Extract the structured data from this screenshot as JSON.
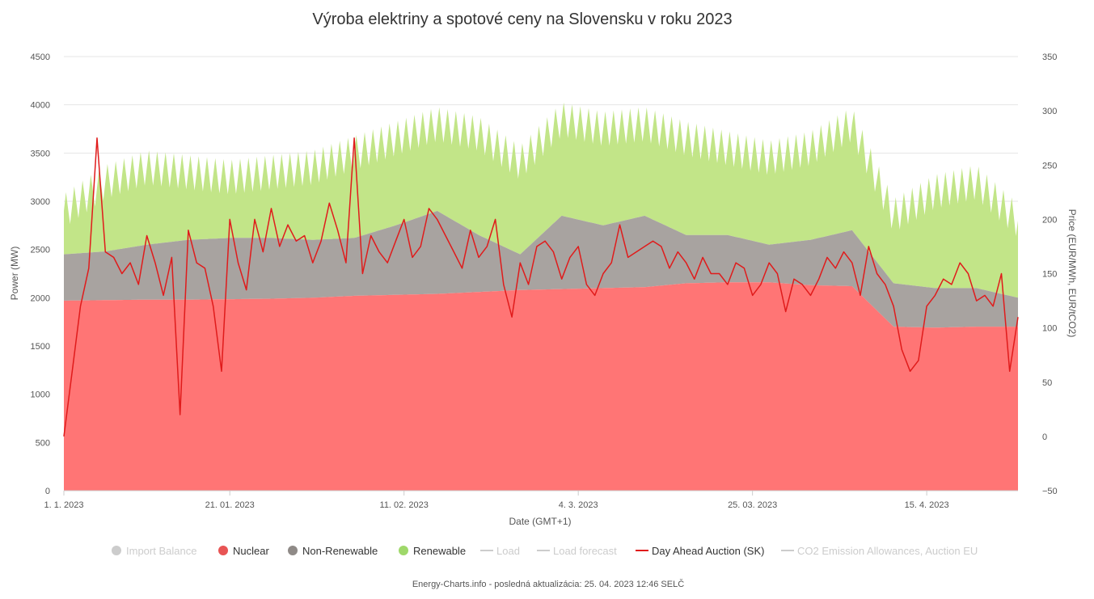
{
  "chart_data": {
    "type": "area",
    "title": "Výroba elektriny a spotové ceny na Slovensku v roku 2023",
    "xlabel": "Date (GMT+1)",
    "ylabel_left": "Power (MW)",
    "ylabel_right": "Price (EUR/MWh, EUR/tCO2)",
    "x_tick_labels": [
      "1. 1. 2023",
      "21. 01. 2023",
      "11. 02. 2023",
      "4. 3. 2023",
      "25. 03. 2023",
      "15. 4. 2023"
    ],
    "x_tick_days": [
      0,
      20,
      41,
      62,
      83,
      104
    ],
    "x_range_days": [
      0,
      115
    ],
    "y_left_ticks": [
      "0",
      "500",
      "1000",
      "1500",
      "2000",
      "2500",
      "3000",
      "3500",
      "4000",
      "4500"
    ],
    "y_left_range": [
      0,
      4500
    ],
    "y_right_ticks": [
      "−50",
      "0",
      "50",
      "100",
      "150",
      "200",
      "250",
      "300",
      "350"
    ],
    "y_right_range": [
      -50,
      350
    ],
    "grid": true,
    "legend_position": "bottom",
    "colors": {
      "import_balance": "#c8c8c8",
      "nuclear": "#ff7575",
      "nuclear_legend": "#e85454",
      "non_renewable": "#a8a3a0",
      "non_renewable_legend": "#8f8a87",
      "renewable": "#c2e588",
      "renewable_legend": "#9fd86a",
      "price_line": "#e01b1b",
      "grid": "#e6e6e6",
      "legend_hidden": "#cccccc",
      "legend_active": "#333333"
    },
    "series": [
      {
        "name": "Nuclear",
        "unit": "MW",
        "days": [
          0,
          5,
          10,
          15,
          20,
          25,
          30,
          35,
          40,
          45,
          50,
          55,
          60,
          65,
          70,
          75,
          80,
          85,
          90,
          95,
          100,
          105,
          110,
          115
        ],
        "values": [
          1970,
          1975,
          1980,
          1980,
          1985,
          1990,
          2000,
          2020,
          2030,
          2040,
          2060,
          2080,
          2090,
          2100,
          2110,
          2150,
          2160,
          2160,
          2130,
          2120,
          1700,
          1690,
          1700,
          1700
        ]
      },
      {
        "name": "Non-Renewable",
        "unit": "MW",
        "stacked_total_days": [
          0,
          5,
          10,
          15,
          20,
          25,
          30,
          35,
          40,
          45,
          50,
          55,
          60,
          65,
          70,
          75,
          80,
          85,
          90,
          95,
          100,
          105,
          110,
          115
        ],
        "stacked_total_values": [
          2450,
          2480,
          2550,
          2600,
          2620,
          2620,
          2600,
          2620,
          2750,
          2900,
          2650,
          2450,
          2850,
          2750,
          2850,
          2650,
          2650,
          2550,
          2600,
          2700,
          2150,
          2100,
          2100,
          2000
        ]
      },
      {
        "name": "Renewable",
        "unit": "MW",
        "stacked_total_days": [
          0,
          5,
          10,
          15,
          20,
          25,
          30,
          35,
          40,
          45,
          50,
          55,
          60,
          65,
          70,
          75,
          80,
          85,
          90,
          95,
          100,
          105,
          110,
          115
        ],
        "stacked_total_values": [
          2900,
          3200,
          3350,
          3300,
          3250,
          3300,
          3350,
          3500,
          3650,
          3800,
          3700,
          3400,
          3850,
          3750,
          3800,
          3650,
          3550,
          3450,
          3550,
          3800,
          2850,
          3100,
          3200,
          2800
        ]
      },
      {
        "name": "Day Ahead Auction (SK)",
        "unit": "EUR/MWh",
        "days": [
          0,
          1,
          2,
          3,
          4,
          5,
          6,
          7,
          8,
          9,
          10,
          11,
          12,
          13,
          14,
          15,
          16,
          17,
          18,
          19,
          20,
          21,
          22,
          23,
          24,
          25,
          26,
          27,
          28,
          29,
          30,
          31,
          32,
          33,
          34,
          35,
          36,
          37,
          38,
          39,
          40,
          41,
          42,
          43,
          44,
          45,
          46,
          47,
          48,
          49,
          50,
          51,
          52,
          53,
          54,
          55,
          56,
          57,
          58,
          59,
          60,
          61,
          62,
          63,
          64,
          65,
          66,
          67,
          68,
          69,
          70,
          71,
          72,
          73,
          74,
          75,
          76,
          77,
          78,
          79,
          80,
          81,
          82,
          83,
          84,
          85,
          86,
          87,
          88,
          89,
          90,
          91,
          92,
          93,
          94,
          95,
          96,
          97,
          98,
          99,
          100,
          101,
          102,
          103,
          104,
          105,
          106,
          107,
          108,
          109,
          110,
          111,
          112,
          113,
          114,
          115
        ],
        "values": [
          0,
          60,
          120,
          155,
          275,
          170,
          165,
          150,
          160,
          140,
          185,
          160,
          130,
          165,
          20,
          190,
          160,
          155,
          120,
          60,
          200,
          160,
          135,
          200,
          170,
          210,
          175,
          195,
          180,
          185,
          160,
          180,
          215,
          190,
          160,
          275,
          150,
          185,
          170,
          160,
          180,
          200,
          165,
          175,
          210,
          200,
          185,
          170,
          155,
          190,
          165,
          175,
          200,
          140,
          110,
          160,
          140,
          175,
          180,
          170,
          145,
          165,
          175,
          140,
          130,
          150,
          160,
          195,
          165,
          170,
          175,
          180,
          175,
          155,
          170,
          160,
          145,
          165,
          150,
          150,
          140,
          160,
          155,
          130,
          140,
          160,
          150,
          115,
          145,
          140,
          130,
          145,
          165,
          155,
          170,
          160,
          130,
          175,
          150,
          140,
          120,
          80,
          60,
          70,
          120,
          130,
          145,
          140,
          160,
          150,
          125,
          130,
          120,
          150,
          60,
          110
        ]
      }
    ],
    "legend": [
      {
        "label": "Import Balance",
        "symbol": "dot",
        "color": "#c8c8c8",
        "visible": false
      },
      {
        "label": "Nuclear",
        "symbol": "dot",
        "color": "#e85454",
        "visible": true
      },
      {
        "label": "Non-Renewable",
        "symbol": "dot",
        "color": "#8f8a87",
        "visible": true
      },
      {
        "label": "Renewable",
        "symbol": "dot",
        "color": "#9fd86a",
        "visible": true
      },
      {
        "label": "Load",
        "symbol": "line",
        "color": "#cccccc",
        "visible": false
      },
      {
        "label": "Load forecast",
        "symbol": "line",
        "color": "#cccccc",
        "visible": false
      },
      {
        "label": "Day Ahead Auction (SK)",
        "symbol": "line",
        "color": "#e01b1b",
        "visible": true
      },
      {
        "label": "CO2 Emission Allowances, Auction EU",
        "symbol": "line",
        "color": "#cccccc",
        "visible": false
      }
    ]
  },
  "footer": "Energy-Charts.info - posledná aktualizácia: 25. 04. 2023 12:46 SELČ"
}
